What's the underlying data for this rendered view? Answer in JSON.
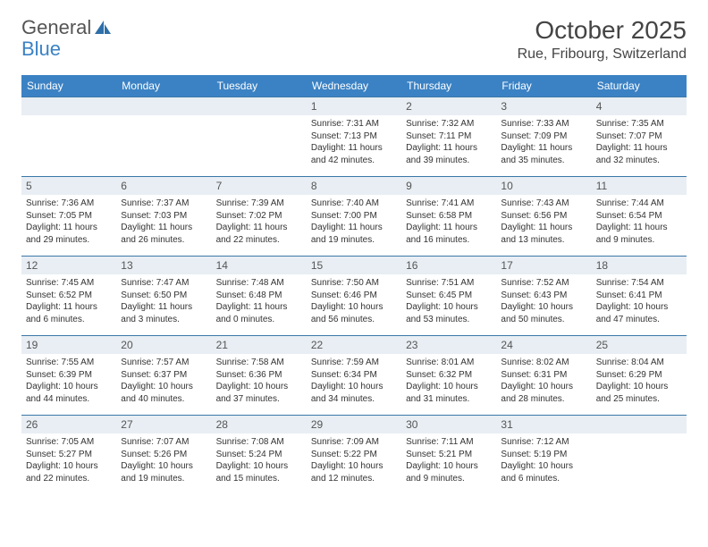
{
  "logo": {
    "text1": "General",
    "text2": "Blue"
  },
  "title": "October 2025",
  "location": "Rue, Fribourg, Switzerland",
  "colors": {
    "header_bg": "#3b82c4",
    "header_text": "#ffffff",
    "daynum_bg": "#e8eef3",
    "row_border": "#3b78a8",
    "text": "#333333"
  },
  "weekdays": [
    "Sunday",
    "Monday",
    "Tuesday",
    "Wednesday",
    "Thursday",
    "Friday",
    "Saturday"
  ],
  "weeks": [
    [
      {
        "num": "",
        "sunrise": "",
        "sunset": "",
        "daylight1": "",
        "daylight2": ""
      },
      {
        "num": "",
        "sunrise": "",
        "sunset": "",
        "daylight1": "",
        "daylight2": ""
      },
      {
        "num": "",
        "sunrise": "",
        "sunset": "",
        "daylight1": "",
        "daylight2": ""
      },
      {
        "num": "1",
        "sunrise": "Sunrise: 7:31 AM",
        "sunset": "Sunset: 7:13 PM",
        "daylight1": "Daylight: 11 hours",
        "daylight2": "and 42 minutes."
      },
      {
        "num": "2",
        "sunrise": "Sunrise: 7:32 AM",
        "sunset": "Sunset: 7:11 PM",
        "daylight1": "Daylight: 11 hours",
        "daylight2": "and 39 minutes."
      },
      {
        "num": "3",
        "sunrise": "Sunrise: 7:33 AM",
        "sunset": "Sunset: 7:09 PM",
        "daylight1": "Daylight: 11 hours",
        "daylight2": "and 35 minutes."
      },
      {
        "num": "4",
        "sunrise": "Sunrise: 7:35 AM",
        "sunset": "Sunset: 7:07 PM",
        "daylight1": "Daylight: 11 hours",
        "daylight2": "and 32 minutes."
      }
    ],
    [
      {
        "num": "5",
        "sunrise": "Sunrise: 7:36 AM",
        "sunset": "Sunset: 7:05 PM",
        "daylight1": "Daylight: 11 hours",
        "daylight2": "and 29 minutes."
      },
      {
        "num": "6",
        "sunrise": "Sunrise: 7:37 AM",
        "sunset": "Sunset: 7:03 PM",
        "daylight1": "Daylight: 11 hours",
        "daylight2": "and 26 minutes."
      },
      {
        "num": "7",
        "sunrise": "Sunrise: 7:39 AM",
        "sunset": "Sunset: 7:02 PM",
        "daylight1": "Daylight: 11 hours",
        "daylight2": "and 22 minutes."
      },
      {
        "num": "8",
        "sunrise": "Sunrise: 7:40 AM",
        "sunset": "Sunset: 7:00 PM",
        "daylight1": "Daylight: 11 hours",
        "daylight2": "and 19 minutes."
      },
      {
        "num": "9",
        "sunrise": "Sunrise: 7:41 AM",
        "sunset": "Sunset: 6:58 PM",
        "daylight1": "Daylight: 11 hours",
        "daylight2": "and 16 minutes."
      },
      {
        "num": "10",
        "sunrise": "Sunrise: 7:43 AM",
        "sunset": "Sunset: 6:56 PM",
        "daylight1": "Daylight: 11 hours",
        "daylight2": "and 13 minutes."
      },
      {
        "num": "11",
        "sunrise": "Sunrise: 7:44 AM",
        "sunset": "Sunset: 6:54 PM",
        "daylight1": "Daylight: 11 hours",
        "daylight2": "and 9 minutes."
      }
    ],
    [
      {
        "num": "12",
        "sunrise": "Sunrise: 7:45 AM",
        "sunset": "Sunset: 6:52 PM",
        "daylight1": "Daylight: 11 hours",
        "daylight2": "and 6 minutes."
      },
      {
        "num": "13",
        "sunrise": "Sunrise: 7:47 AM",
        "sunset": "Sunset: 6:50 PM",
        "daylight1": "Daylight: 11 hours",
        "daylight2": "and 3 minutes."
      },
      {
        "num": "14",
        "sunrise": "Sunrise: 7:48 AM",
        "sunset": "Sunset: 6:48 PM",
        "daylight1": "Daylight: 11 hours",
        "daylight2": "and 0 minutes."
      },
      {
        "num": "15",
        "sunrise": "Sunrise: 7:50 AM",
        "sunset": "Sunset: 6:46 PM",
        "daylight1": "Daylight: 10 hours",
        "daylight2": "and 56 minutes."
      },
      {
        "num": "16",
        "sunrise": "Sunrise: 7:51 AM",
        "sunset": "Sunset: 6:45 PM",
        "daylight1": "Daylight: 10 hours",
        "daylight2": "and 53 minutes."
      },
      {
        "num": "17",
        "sunrise": "Sunrise: 7:52 AM",
        "sunset": "Sunset: 6:43 PM",
        "daylight1": "Daylight: 10 hours",
        "daylight2": "and 50 minutes."
      },
      {
        "num": "18",
        "sunrise": "Sunrise: 7:54 AM",
        "sunset": "Sunset: 6:41 PM",
        "daylight1": "Daylight: 10 hours",
        "daylight2": "and 47 minutes."
      }
    ],
    [
      {
        "num": "19",
        "sunrise": "Sunrise: 7:55 AM",
        "sunset": "Sunset: 6:39 PM",
        "daylight1": "Daylight: 10 hours",
        "daylight2": "and 44 minutes."
      },
      {
        "num": "20",
        "sunrise": "Sunrise: 7:57 AM",
        "sunset": "Sunset: 6:37 PM",
        "daylight1": "Daylight: 10 hours",
        "daylight2": "and 40 minutes."
      },
      {
        "num": "21",
        "sunrise": "Sunrise: 7:58 AM",
        "sunset": "Sunset: 6:36 PM",
        "daylight1": "Daylight: 10 hours",
        "daylight2": "and 37 minutes."
      },
      {
        "num": "22",
        "sunrise": "Sunrise: 7:59 AM",
        "sunset": "Sunset: 6:34 PM",
        "daylight1": "Daylight: 10 hours",
        "daylight2": "and 34 minutes."
      },
      {
        "num": "23",
        "sunrise": "Sunrise: 8:01 AM",
        "sunset": "Sunset: 6:32 PM",
        "daylight1": "Daylight: 10 hours",
        "daylight2": "and 31 minutes."
      },
      {
        "num": "24",
        "sunrise": "Sunrise: 8:02 AM",
        "sunset": "Sunset: 6:31 PM",
        "daylight1": "Daylight: 10 hours",
        "daylight2": "and 28 minutes."
      },
      {
        "num": "25",
        "sunrise": "Sunrise: 8:04 AM",
        "sunset": "Sunset: 6:29 PM",
        "daylight1": "Daylight: 10 hours",
        "daylight2": "and 25 minutes."
      }
    ],
    [
      {
        "num": "26",
        "sunrise": "Sunrise: 7:05 AM",
        "sunset": "Sunset: 5:27 PM",
        "daylight1": "Daylight: 10 hours",
        "daylight2": "and 22 minutes."
      },
      {
        "num": "27",
        "sunrise": "Sunrise: 7:07 AM",
        "sunset": "Sunset: 5:26 PM",
        "daylight1": "Daylight: 10 hours",
        "daylight2": "and 19 minutes."
      },
      {
        "num": "28",
        "sunrise": "Sunrise: 7:08 AM",
        "sunset": "Sunset: 5:24 PM",
        "daylight1": "Daylight: 10 hours",
        "daylight2": "and 15 minutes."
      },
      {
        "num": "29",
        "sunrise": "Sunrise: 7:09 AM",
        "sunset": "Sunset: 5:22 PM",
        "daylight1": "Daylight: 10 hours",
        "daylight2": "and 12 minutes."
      },
      {
        "num": "30",
        "sunrise": "Sunrise: 7:11 AM",
        "sunset": "Sunset: 5:21 PM",
        "daylight1": "Daylight: 10 hours",
        "daylight2": "and 9 minutes."
      },
      {
        "num": "31",
        "sunrise": "Sunrise: 7:12 AM",
        "sunset": "Sunset: 5:19 PM",
        "daylight1": "Daylight: 10 hours",
        "daylight2": "and 6 minutes."
      },
      {
        "num": "",
        "sunrise": "",
        "sunset": "",
        "daylight1": "",
        "daylight2": ""
      }
    ]
  ]
}
